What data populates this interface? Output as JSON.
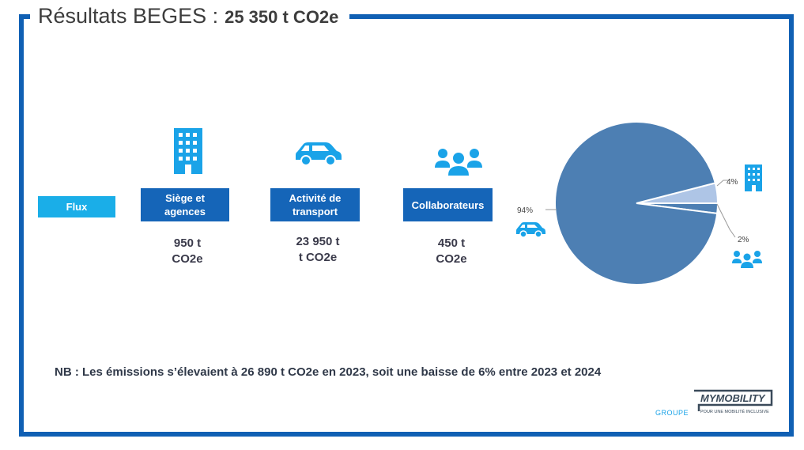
{
  "title": {
    "main": "Résultats BEGES :",
    "value": "25 350 t CO2e"
  },
  "flux_label": "Flux",
  "categories": [
    {
      "label": "Siège et agences",
      "value_line1": "950 t",
      "value_line2": "CO2e",
      "icon": "building-icon"
    },
    {
      "label": "Activité de transport",
      "value_line1": "23 950 t",
      "value_line2": "t CO2e",
      "icon": "car-icon"
    },
    {
      "label": "Collaborateurs",
      "value_line1": "450 t",
      "value_line2": "CO2e",
      "icon": "people-icon"
    }
  ],
  "note": "NB : Les émissions s’élevaient à 26 890 t CO2e en 2023, soit une baisse de 6% entre 2023 et 2024",
  "logo": {
    "brand": "MYMOBILITY",
    "groupe": "GROUPE",
    "tagline": "POUR UNE MOBILITÉ INCLUSIVE"
  },
  "colors": {
    "frame": "#1060b4",
    "box": "#1565b8",
    "flux": "#1aaee8",
    "icon": "#1aa3e8",
    "pie_main": "#4d7fb3",
    "pie_small": "#aec5e6"
  },
  "chart_data": {
    "type": "pie",
    "slices": [
      {
        "name": "Activité de transport",
        "value": 94,
        "label": "94%",
        "color": "#4d7fb3"
      },
      {
        "name": "Siège et agences",
        "value": 4,
        "label": "4%",
        "color": "#aec5e6"
      },
      {
        "name": "Collaborateurs",
        "value": 2,
        "label": "2%",
        "color": "#4d7fb3"
      }
    ]
  }
}
